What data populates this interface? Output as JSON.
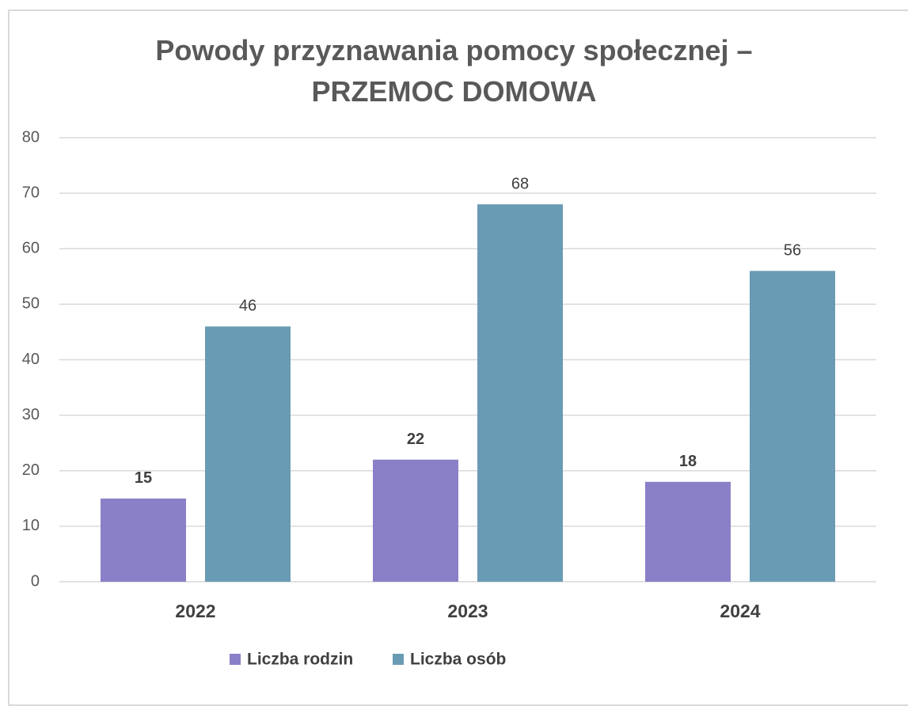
{
  "chart_data": {
    "type": "bar",
    "title": "Powody przyznawania pomocy społecznej – PRZEMOC DOMOWA",
    "categories": [
      "2022",
      "2023",
      "2024"
    ],
    "series": [
      {
        "name": "Liczba rodzin",
        "color": "#8980c8",
        "values": [
          15,
          22,
          18
        ]
      },
      {
        "name": "Liczba osób",
        "color": "#6a9bb4",
        "values": [
          46,
          68,
          56
        ]
      }
    ],
    "ylim": [
      0,
      80
    ],
    "yticks": [
      0,
      10,
      20,
      30,
      40,
      50,
      60,
      70,
      80
    ],
    "grid": true,
    "legend": "bottom"
  }
}
